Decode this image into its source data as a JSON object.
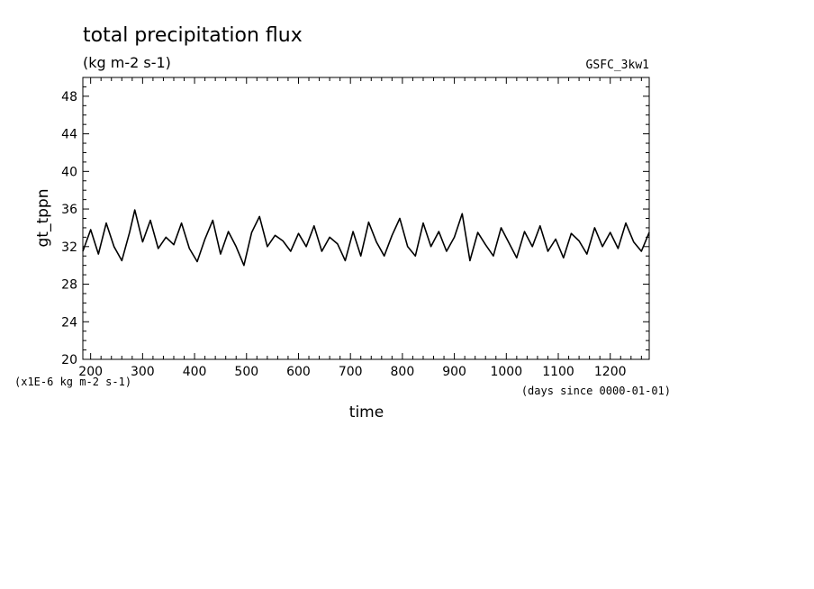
{
  "chart_data": {
    "type": "line",
    "title": "total precipitation flux",
    "subtitle": "(kg m-2 s-1)",
    "run_label": "GSFC_3kw1",
    "ylabel": "gt_tppn",
    "xlabel": "time",
    "y_unit_note": "(x1E-6 kg m-2 s-1)",
    "x_unit_note": "(days since 0000-01-01)",
    "xlim": [
      185,
      1275
    ],
    "ylim": [
      20,
      50
    ],
    "x_ticks": [
      200,
      300,
      400,
      500,
      600,
      700,
      800,
      900,
      1000,
      1100,
      1200
    ],
    "y_ticks": [
      20,
      24,
      28,
      32,
      36,
      40,
      44,
      48
    ],
    "grid": false,
    "series": [
      {
        "x": [
          185,
          200,
          215,
          230,
          245,
          260,
          275,
          285,
          300,
          315,
          330,
          345,
          360,
          375,
          390,
          405,
          420,
          435,
          450,
          465,
          480,
          495,
          510,
          525,
          540,
          555,
          570,
          585,
          600,
          615,
          630,
          645,
          660,
          675,
          690,
          705,
          720,
          735,
          750,
          765,
          780,
          795,
          810,
          825,
          840,
          855,
          870,
          885,
          900,
          915,
          930,
          945,
          960,
          975,
          990,
          1005,
          1020,
          1035,
          1050,
          1065,
          1080,
          1095,
          1110,
          1125,
          1140,
          1155,
          1170,
          1185,
          1200,
          1215,
          1230,
          1245,
          1260,
          1275
        ],
        "values": [
          31.5,
          33.8,
          31.2,
          34.5,
          32.0,
          30.5,
          33.5,
          35.9,
          32.5,
          34.8,
          31.8,
          33.0,
          32.2,
          34.5,
          31.8,
          30.4,
          32.8,
          34.8,
          31.2,
          33.6,
          32.0,
          30.0,
          33.5,
          35.2,
          32.0,
          33.2,
          32.6,
          31.5,
          33.4,
          32.0,
          34.2,
          31.5,
          33.0,
          32.3,
          30.5,
          33.6,
          31.0,
          34.6,
          32.5,
          31.0,
          33.2,
          35.0,
          32.0,
          31.0,
          34.5,
          32.0,
          33.6,
          31.5,
          33.0,
          35.5,
          30.5,
          33.5,
          32.2,
          31.0,
          34.0,
          32.4,
          30.8,
          33.6,
          32.0,
          34.2,
          31.5,
          32.8,
          30.8,
          33.4,
          32.6,
          31.2,
          34.0,
          32.0,
          33.5,
          31.8,
          34.5,
          32.5,
          31.5,
          33.5
        ]
      }
    ]
  }
}
